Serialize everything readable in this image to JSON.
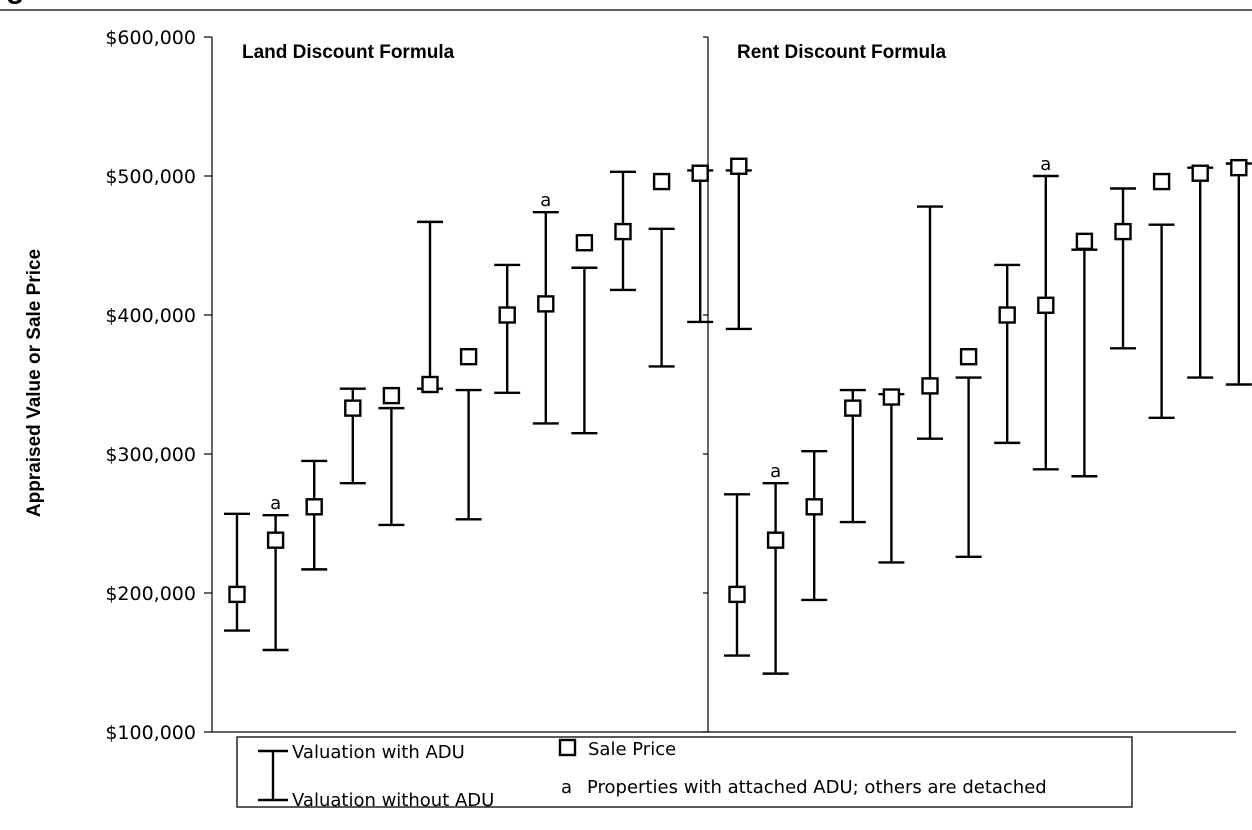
{
  "header": {
    "title_fragment": "g"
  },
  "chart_data": {
    "type": "error-bar",
    "ylabel": "Appraised Value or Sale Price",
    "ylim": [
      100000,
      600000
    ],
    "y_ticks": [
      {
        "value": 100000,
        "label": "$100,000"
      },
      {
        "value": 200000,
        "label": "$200,000"
      },
      {
        "value": 300000,
        "label": "$300,000"
      },
      {
        "value": 400000,
        "label": "$400,000"
      },
      {
        "value": 500000,
        "label": "$500,000"
      },
      {
        "value": 600000,
        "label": "$600,000"
      }
    ],
    "marker_letter": "a",
    "panels": [
      {
        "title": "Land Discount Formula",
        "points": [
          {
            "sale": 199000,
            "with_adu": 257000,
            "without_adu": 173000,
            "attached": false
          },
          {
            "sale": 238000,
            "with_adu": 256000,
            "without_adu": 159000,
            "attached": true
          },
          {
            "sale": 262000,
            "with_adu": 295000,
            "without_adu": 217000,
            "attached": false
          },
          {
            "sale": 333000,
            "with_adu": 347000,
            "without_adu": 279000,
            "attached": false
          },
          {
            "sale": 342000,
            "with_adu": 333000,
            "without_adu": 249000,
            "attached": false
          },
          {
            "sale": 350000,
            "with_adu": 467000,
            "without_adu": 347000,
            "attached": false
          },
          {
            "sale": 370000,
            "with_adu": 346000,
            "without_adu": 253000,
            "attached": false
          },
          {
            "sale": 400000,
            "with_adu": 436000,
            "without_adu": 344000,
            "attached": false
          },
          {
            "sale": 408000,
            "with_adu": 474000,
            "without_adu": 322000,
            "attached": true
          },
          {
            "sale": 452000,
            "with_adu": 434000,
            "without_adu": 315000,
            "attached": false
          },
          {
            "sale": 460000,
            "with_adu": 503000,
            "without_adu": 418000,
            "attached": false
          },
          {
            "sale": 496000,
            "with_adu": 462000,
            "without_adu": 363000,
            "attached": false
          },
          {
            "sale": 502000,
            "with_adu": 504000,
            "without_adu": 395000,
            "attached": false
          },
          {
            "sale": 507000,
            "with_adu": 504000,
            "without_adu": 390000,
            "attached": false
          }
        ]
      },
      {
        "title": "Rent Discount Formula",
        "points": [
          {
            "sale": 199000,
            "with_adu": 271000,
            "without_adu": 155000,
            "attached": false
          },
          {
            "sale": 238000,
            "with_adu": 279000,
            "without_adu": 142000,
            "attached": true
          },
          {
            "sale": 262000,
            "with_adu": 302000,
            "without_adu": 195000,
            "attached": false
          },
          {
            "sale": 333000,
            "with_adu": 346000,
            "without_adu": 251000,
            "attached": false
          },
          {
            "sale": 341000,
            "with_adu": 343000,
            "without_adu": 222000,
            "attached": false
          },
          {
            "sale": 349000,
            "with_adu": 478000,
            "without_adu": 311000,
            "attached": false
          },
          {
            "sale": 370000,
            "with_adu": 355000,
            "without_adu": 226000,
            "attached": false
          },
          {
            "sale": 400000,
            "with_adu": 436000,
            "without_adu": 308000,
            "attached": false
          },
          {
            "sale": 407000,
            "with_adu": 500000,
            "without_adu": 289000,
            "attached": true
          },
          {
            "sale": 453000,
            "with_adu": 447000,
            "without_adu": 284000,
            "attached": false
          },
          {
            "sale": 460000,
            "with_adu": 491000,
            "without_adu": 376000,
            "attached": false
          },
          {
            "sale": 496000,
            "with_adu": 465000,
            "without_adu": 326000,
            "attached": false
          },
          {
            "sale": 502000,
            "with_adu": 506000,
            "without_adu": 355000,
            "attached": false
          },
          {
            "sale": 506000,
            "with_adu": 509000,
            "without_adu": 350000,
            "attached": false
          }
        ]
      }
    ],
    "legend": {
      "with_adu": "Valuation with ADU",
      "without_adu": "Valuation without ADU",
      "sale_price": "Sale Price",
      "attached_marker": "a",
      "attached_note": "Properties with attached ADU; others are detached"
    }
  }
}
